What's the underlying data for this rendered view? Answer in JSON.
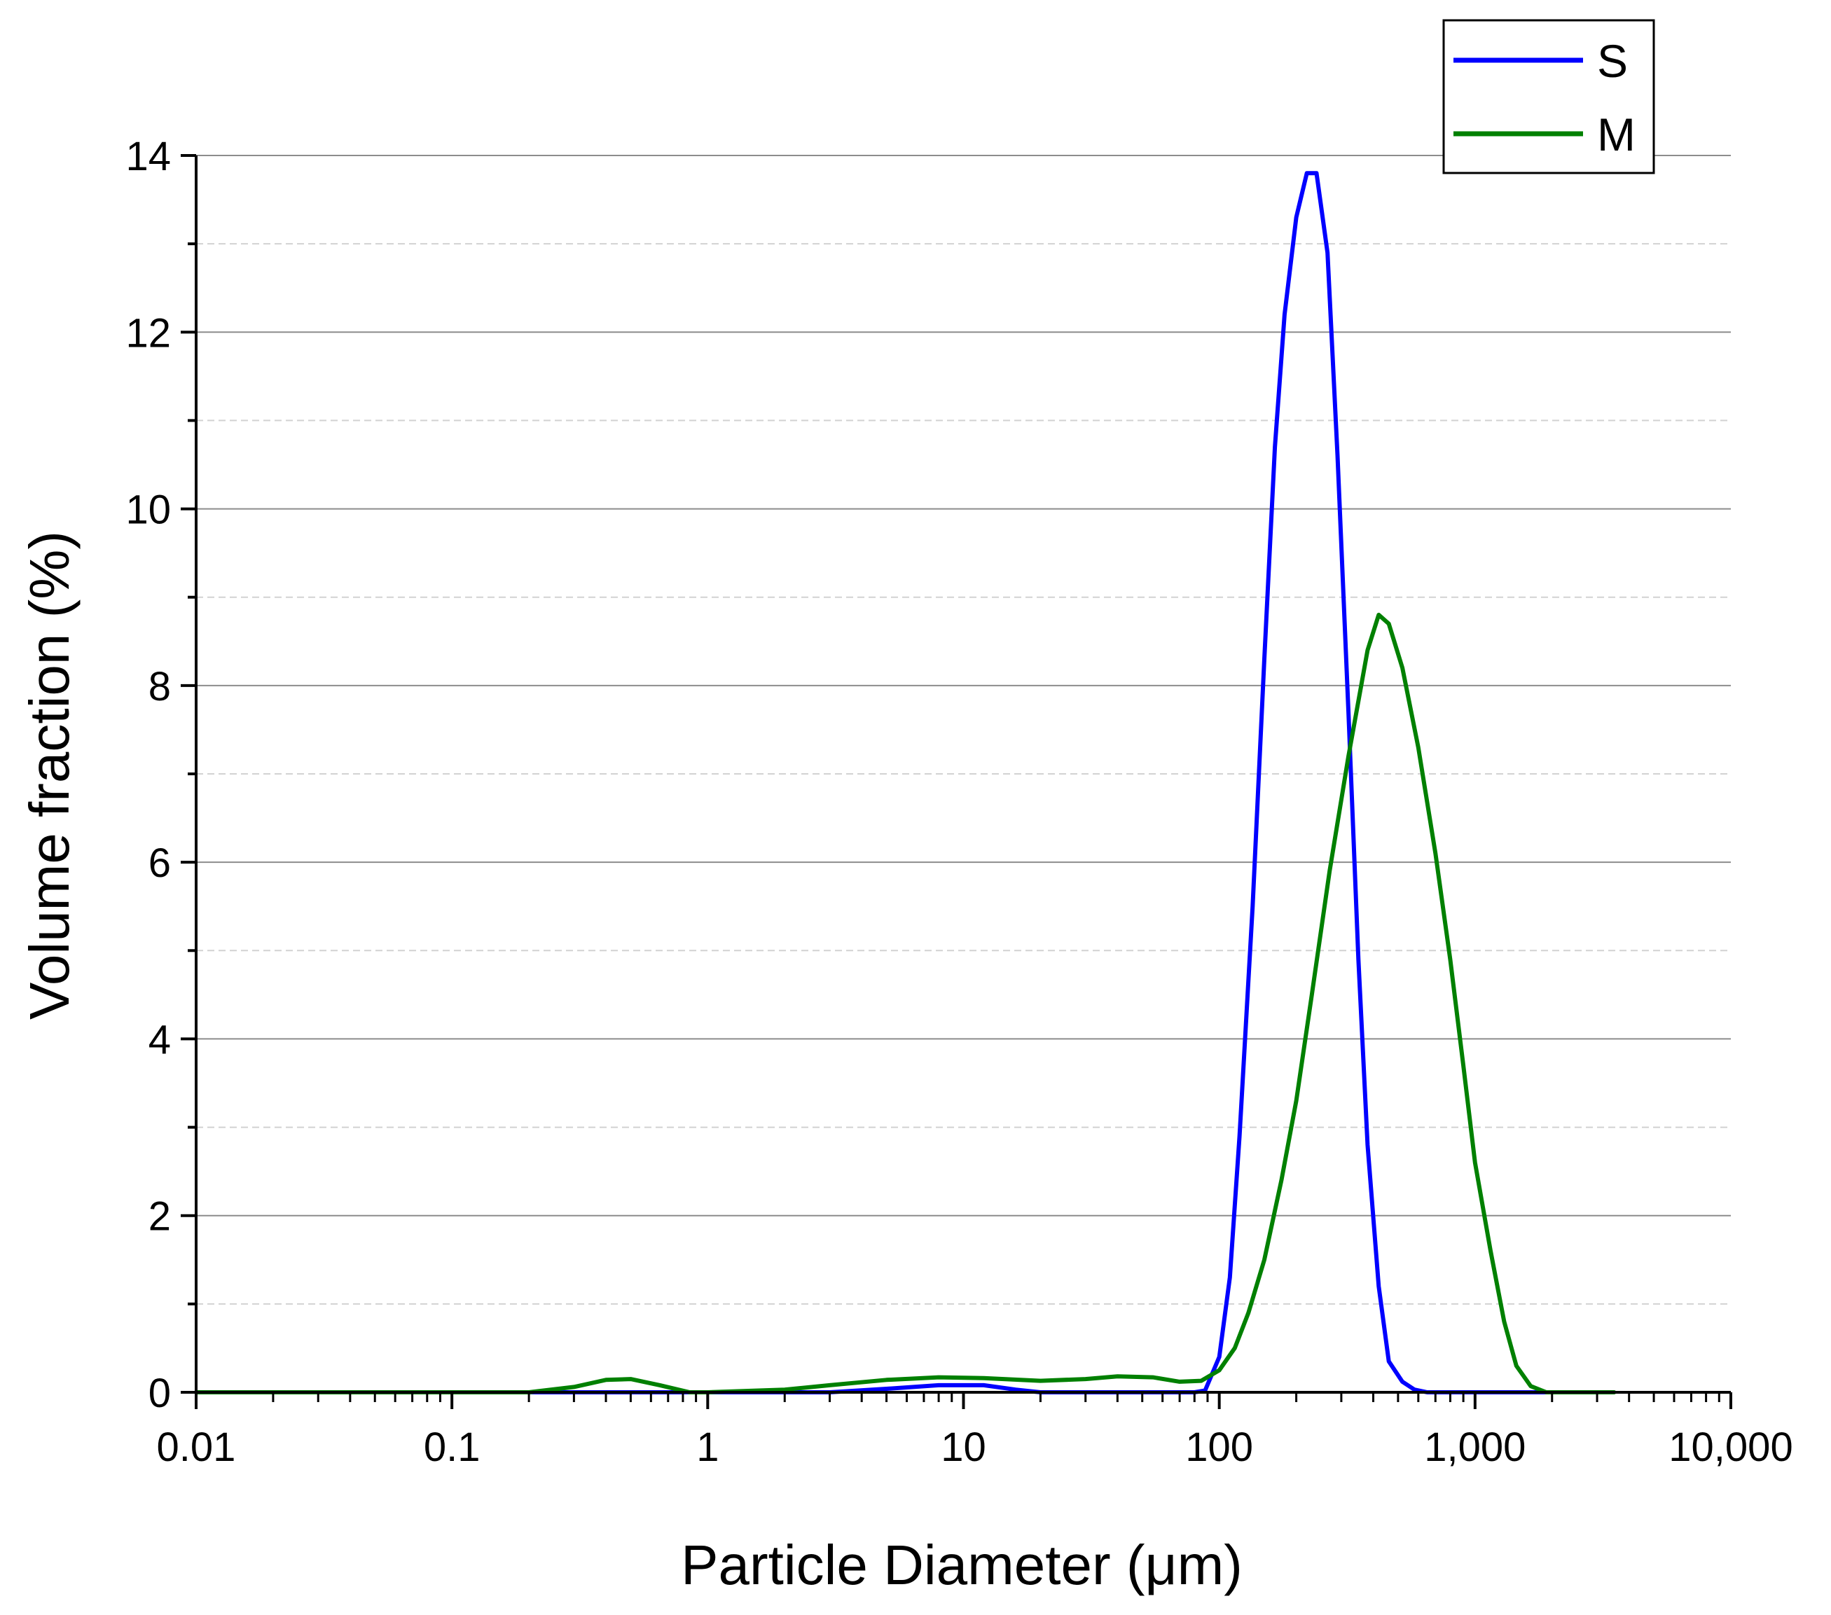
{
  "chart_data": {
    "type": "line",
    "title": "",
    "xlabel": "Particle Diameter (μm)",
    "ylabel": "Volume fraction (%)",
    "xscale": "log",
    "xlim": [
      0.01,
      10000
    ],
    "ylim": [
      0,
      14
    ],
    "x_ticks": [
      {
        "value": 0.01,
        "label": "0.01"
      },
      {
        "value": 0.1,
        "label": "0.1"
      },
      {
        "value": 1,
        "label": "1"
      },
      {
        "value": 10,
        "label": "10"
      },
      {
        "value": 100,
        "label": "100"
      },
      {
        "value": 1000,
        "label": "1,000"
      },
      {
        "value": 10000,
        "label": "10,000"
      }
    ],
    "y_ticks": [
      {
        "value": 0,
        "label": "0"
      },
      {
        "value": 2,
        "label": "2"
      },
      {
        "value": 4,
        "label": "4"
      },
      {
        "value": 6,
        "label": "6"
      },
      {
        "value": 8,
        "label": "8"
      },
      {
        "value": 10,
        "label": "10"
      },
      {
        "value": 12,
        "label": "12"
      },
      {
        "value": 14,
        "label": "14"
      }
    ],
    "grid": {
      "major_y": true,
      "minor_y": true
    },
    "legend": {
      "position": "top-right"
    },
    "series": [
      {
        "name": "S",
        "color": "#0000ff",
        "x": [
          0.01,
          3,
          5,
          8,
          12,
          16,
          20,
          50,
          80,
          88,
          100,
          110,
          120,
          135,
          150,
          165,
          180,
          200,
          220,
          240,
          265,
          290,
          320,
          350,
          380,
          420,
          460,
          520,
          580,
          650,
          1000,
          3000
        ],
        "y": [
          0,
          0,
          0.04,
          0.08,
          0.08,
          0.03,
          0,
          0,
          0,
          0.02,
          0.4,
          1.3,
          2.9,
          5.5,
          8.3,
          10.7,
          12.2,
          13.3,
          13.8,
          13.8,
          12.9,
          10.6,
          7.7,
          4.9,
          2.8,
          1.2,
          0.35,
          0.12,
          0.03,
          0,
          0,
          0
        ]
      },
      {
        "name": "M",
        "color": "#008000",
        "x": [
          0.01,
          0.2,
          0.3,
          0.4,
          0.5,
          0.65,
          0.85,
          1,
          2,
          3,
          5,
          8,
          12,
          20,
          30,
          40,
          55,
          70,
          85,
          100,
          115,
          130,
          150,
          175,
          200,
          230,
          270,
          320,
          380,
          420,
          460,
          520,
          600,
          700,
          800,
          900,
          1000,
          1150,
          1300,
          1450,
          1650,
          1900,
          3500
        ],
        "y": [
          0,
          0,
          0.06,
          0.14,
          0.15,
          0.08,
          0,
          0,
          0.03,
          0.08,
          0.14,
          0.17,
          0.16,
          0.13,
          0.15,
          0.18,
          0.17,
          0.12,
          0.13,
          0.25,
          0.5,
          0.9,
          1.5,
          2.4,
          3.3,
          4.5,
          5.9,
          7.2,
          8.4,
          8.8,
          8.7,
          8.2,
          7.3,
          6.1,
          4.9,
          3.7,
          2.6,
          1.6,
          0.8,
          0.3,
          0.07,
          0,
          0
        ]
      }
    ]
  }
}
